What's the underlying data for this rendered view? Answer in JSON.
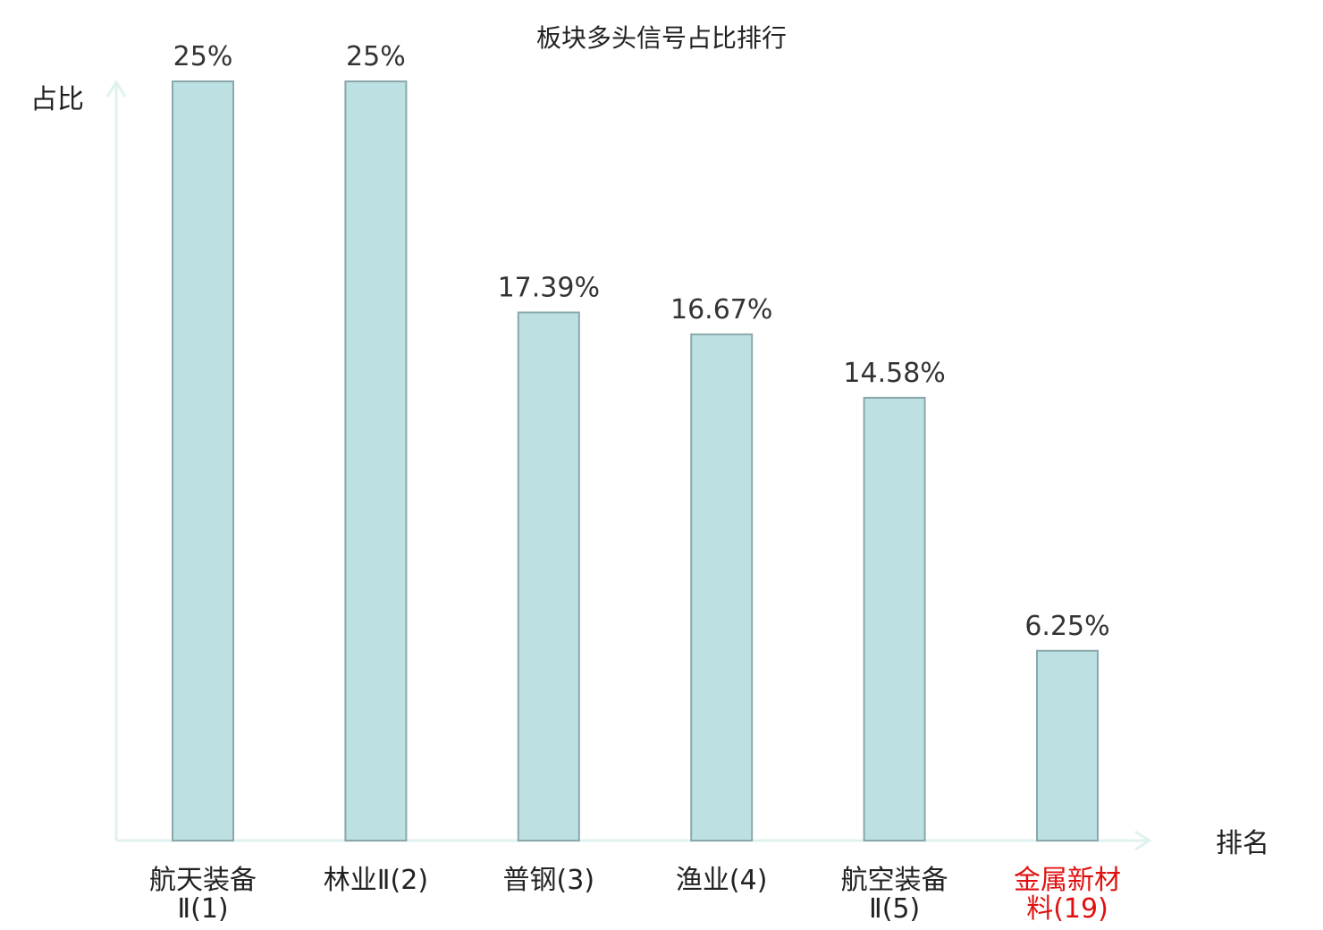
{
  "chart_data": {
    "type": "bar",
    "title": "板块多头信号占比排行",
    "ylabel": "占比",
    "xlabel": "排名",
    "categories": [
      [
        "航天装备",
        "Ⅱ(1)"
      ],
      [
        "林业Ⅱ(2)"
      ],
      [
        "普钢(3)"
      ],
      [
        "渔业(4)"
      ],
      [
        "航空装备",
        "Ⅱ(5)"
      ],
      [
        "金属新材",
        "料(19)"
      ]
    ],
    "values": [
      25,
      25,
      17.39,
      16.67,
      14.58,
      6.25
    ],
    "value_labels": [
      "25%",
      "25%",
      "17.39%",
      "16.67%",
      "14.58%",
      "6.25%"
    ],
    "highlight_index": 5,
    "ylim": [
      0,
      25
    ],
    "grid": false,
    "colors": {
      "bar_fill": "#bde0e2",
      "bar_stroke": "#8aa8aa",
      "axis": "#e0f2ef",
      "category_text": "#222222",
      "highlight_text": "#e01010"
    }
  }
}
